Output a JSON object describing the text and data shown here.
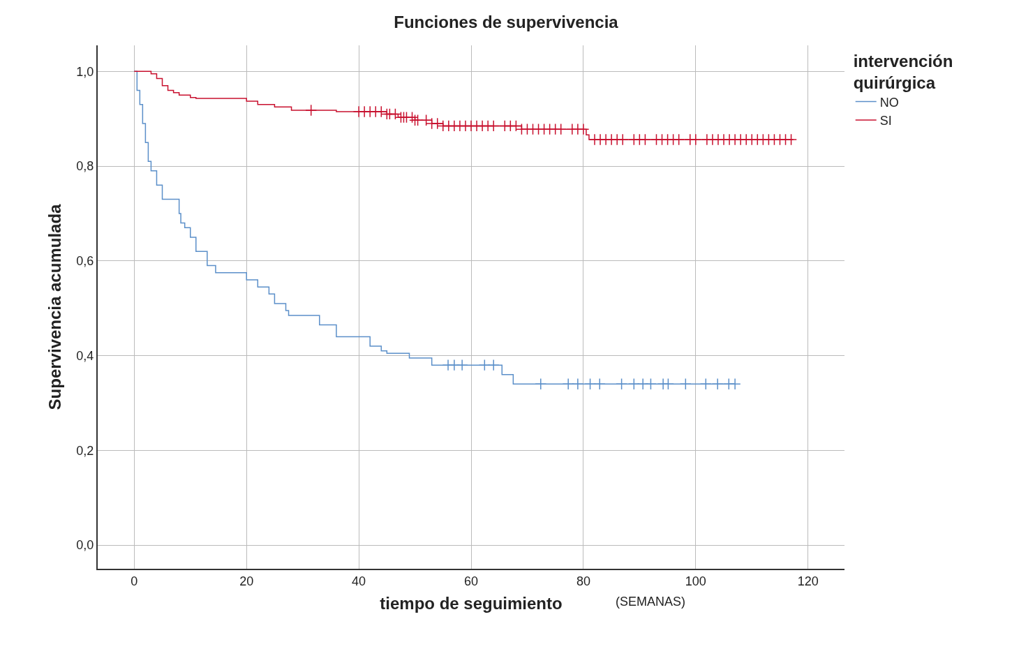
{
  "chart_data": {
    "type": "step",
    "title": "Funciones de supervivencia",
    "xlabel": "tiempo de seguimiento",
    "ylabel": "Supervivencia acumulada",
    "legend_title": "intervención\nquirúrgica",
    "annotations": [
      "(SEMANAS)"
    ],
    "xlim": [
      -6.5,
      126.5
    ],
    "ylim": [
      -0.05,
      1.055
    ],
    "xticks": [
      0,
      20,
      40,
      60,
      80,
      100,
      120
    ],
    "yticks": [
      {
        "value": 0,
        "label": "0,0"
      },
      {
        "value": 0.2,
        "label": "0,2"
      },
      {
        "value": 0.4,
        "label": "0,4"
      },
      {
        "value": 0.6,
        "label": "0,6"
      },
      {
        "value": 0.8,
        "label": "0,8"
      },
      {
        "value": 1.0,
        "label": "1,0"
      }
    ],
    "grid": true,
    "legend": "top right",
    "line_style": "solid",
    "series": [
      {
        "name": "NO",
        "color": "#5b8fc9",
        "marker": "none",
        "x": [
          0,
          0.5,
          1,
          1.5,
          2,
          2.5,
          3,
          4,
          5,
          8,
          8.3,
          9,
          10,
          11,
          13,
          14.5,
          20,
          22,
          24,
          25,
          27,
          27.5,
          33,
          36,
          42,
          44,
          45,
          49,
          53,
          65.5,
          67.5,
          107
        ],
        "values": [
          1.0,
          0.96,
          0.93,
          0.89,
          0.85,
          0.81,
          0.79,
          0.76,
          0.73,
          0.7,
          0.68,
          0.67,
          0.65,
          0.62,
          0.59,
          0.575,
          0.56,
          0.545,
          0.53,
          0.51,
          0.495,
          0.485,
          0.465,
          0.44,
          0.42,
          0.41,
          0.405,
          0.395,
          0.38,
          0.36,
          0.34,
          0.34
        ]
      },
      {
        "name": "SI",
        "color": "#c8102e",
        "marker": "none",
        "x": [
          0,
          3,
          4,
          5,
          6,
          7,
          8,
          10,
          11,
          20,
          22,
          25,
          28,
          36,
          45,
          47,
          50,
          53,
          55,
          69,
          80.5,
          81,
          117.4
        ],
        "values": [
          1.0,
          0.995,
          0.985,
          0.97,
          0.96,
          0.955,
          0.95,
          0.945,
          0.943,
          0.937,
          0.93,
          0.925,
          0.918,
          0.915,
          0.91,
          0.903,
          0.897,
          0.89,
          0.885,
          0.878,
          0.866,
          0.856,
          0.856
        ]
      },
      {
        "type": "scatter",
        "color": "#5b8fc9",
        "marker": "cross",
        "x": [
          55.9,
          57,
          58.4,
          62.4,
          64,
          72.4,
          77.3,
          79,
          81.2,
          82.9,
          86.8,
          89,
          90.6,
          92,
          94.2,
          95.1,
          98.2,
          101.8,
          103.9,
          105.9,
          107
        ],
        "values": [
          0.38,
          0.38,
          0.38,
          0.38,
          0.38,
          0.34,
          0.34,
          0.34,
          0.34,
          0.34,
          0.34,
          0.34,
          0.34,
          0.34,
          0.34,
          0.34,
          0.34,
          0.34,
          0.34,
          0.34,
          0.34
        ]
      },
      {
        "type": "scatter",
        "color": "#c8102e",
        "marker": "cross",
        "x": [
          31.5,
          40,
          41,
          42,
          43,
          44,
          45,
          45.5,
          46.5,
          47.5,
          48,
          48.5,
          49.5,
          50,
          50.5,
          52,
          53,
          54,
          55,
          56,
          57,
          58,
          59,
          60,
          61,
          62,
          63,
          64,
          66,
          67,
          68,
          69,
          70,
          71,
          72,
          73,
          74,
          75,
          76,
          78,
          79,
          80,
          82,
          83,
          84,
          85,
          86,
          87,
          89,
          90,
          91,
          93,
          94,
          95,
          96,
          97,
          99,
          100,
          102,
          103,
          104,
          105,
          106,
          107,
          108,
          109,
          110,
          111,
          112,
          113,
          114,
          115,
          116,
          117
        ],
        "values": [
          0.918,
          0.915,
          0.915,
          0.915,
          0.915,
          0.915,
          0.91,
          0.91,
          0.91,
          0.903,
          0.903,
          0.903,
          0.903,
          0.897,
          0.897,
          0.897,
          0.89,
          0.89,
          0.885,
          0.885,
          0.885,
          0.885,
          0.885,
          0.885,
          0.885,
          0.885,
          0.885,
          0.885,
          0.885,
          0.885,
          0.885,
          0.878,
          0.878,
          0.878,
          0.878,
          0.878,
          0.878,
          0.878,
          0.878,
          0.878,
          0.878,
          0.878,
          0.856,
          0.856,
          0.856,
          0.856,
          0.856,
          0.856,
          0.856,
          0.856,
          0.856,
          0.856,
          0.856,
          0.856,
          0.856,
          0.856,
          0.856,
          0.856,
          0.856,
          0.856,
          0.856,
          0.856,
          0.856,
          0.856,
          0.856,
          0.856,
          0.856,
          0.856,
          0.856,
          0.856,
          0.856,
          0.856,
          0.856,
          0.856
        ]
      }
    ]
  }
}
